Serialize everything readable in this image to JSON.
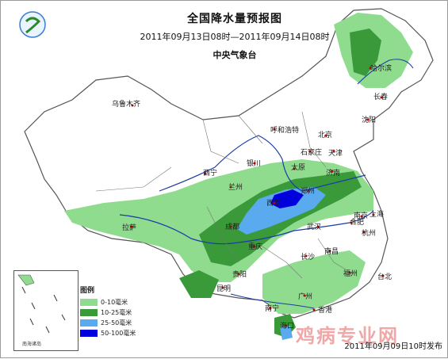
{
  "map": {
    "title": "全国降水量预报图",
    "period": "2011年09月13日08时—2011年09月14日08时",
    "agency": "中央气象台",
    "published": "2011年09月09日10时发布",
    "watermark": "鸡病专业网",
    "inset_label": "南海诸岛",
    "cities": {
      "wulumuqi": "乌鲁木齐",
      "haerbin": "哈尔滨",
      "changchun": "长春",
      "shenyang": "沈阳",
      "huhehaote": "呼和浩特",
      "beijing": "北京",
      "tianjin": "天津",
      "shijiazhuang": "石家庄",
      "taiyuan": "太原",
      "jinan": "济南",
      "yinchuan": "银川",
      "xining": "西宁",
      "lanzhou": "兰州",
      "xian": "西安",
      "zhengzhou": "郑州",
      "hefei": "合肥",
      "nanjing": "南京",
      "shanghai": "上海",
      "wuhan": "武汉",
      "hangzhou": "杭州",
      "chengdu": "成都",
      "chongqing": "重庆",
      "changsha": "长沙",
      "nanchang": "南昌",
      "lasa": "拉萨",
      "guiyang": "贵阳",
      "fuzhou": "福州",
      "taibei": "台北",
      "kunming": "昆明",
      "nanning": "南宁",
      "guangzhou": "广州",
      "xianggang": "香港",
      "haikou": "海口"
    }
  },
  "legend": {
    "title": "图例",
    "items": [
      {
        "label": "0-10毫米",
        "color": "#8fdc8f"
      },
      {
        "label": "10-25毫米",
        "color": "#3a9a3a"
      },
      {
        "label": "25-50毫米",
        "color": "#5aaaf0"
      },
      {
        "label": "50-100毫米",
        "color": "#0000dd"
      }
    ]
  },
  "colors": {
    "land": "#ffffff",
    "border": "#555555",
    "river": "#1a3ca8",
    "light_rain": "#8fdc8f",
    "moderate_rain": "#3a9a3a",
    "heavy_rain": "#5aaaf0",
    "rainstorm": "#0000dd"
  }
}
